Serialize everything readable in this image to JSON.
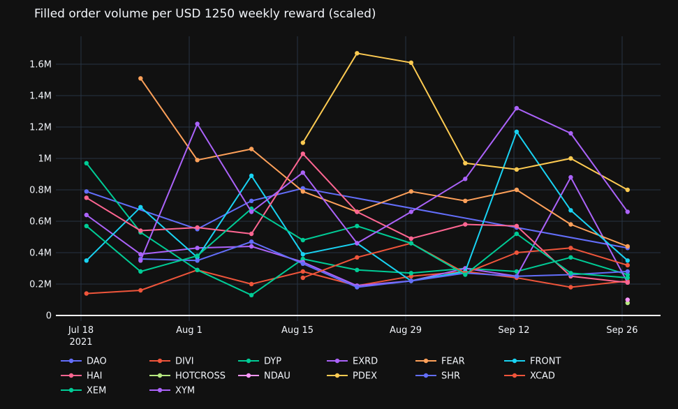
{
  "chart_data": {
    "type": "line",
    "title": "Filled order volume per USD 1250 weekly reward (scaled)",
    "xlabel": "",
    "ylabel": "",
    "ylim": [
      0,
      1.75
    ],
    "y_ticks": [
      {
        "value": 0,
        "label": "0"
      },
      {
        "value": 0.2,
        "label": "0.2M"
      },
      {
        "value": 0.4,
        "label": "0.4M"
      },
      {
        "value": 0.6,
        "label": "0.6M"
      },
      {
        "value": 0.8,
        "label": "0.8M"
      },
      {
        "value": 1.0,
        "label": "1M"
      },
      {
        "value": 1.2,
        "label": "1.2M"
      },
      {
        "value": 1.4,
        "label": "1.4M"
      },
      {
        "value": 1.6,
        "label": "1.6M"
      }
    ],
    "x_ticks": [
      {
        "week": 0,
        "label": "Jul 18",
        "sublabel": "2021"
      },
      {
        "week": 2,
        "label": "Aug 1",
        "sublabel": ""
      },
      {
        "week": 4,
        "label": "Aug 15",
        "sublabel": ""
      },
      {
        "week": 6,
        "label": "Aug 29",
        "sublabel": ""
      },
      {
        "week": 8,
        "label": "Sep 12",
        "sublabel": ""
      },
      {
        "week": 10,
        "label": "Sep 26",
        "sublabel": ""
      }
    ],
    "x_unit": "weeks since Jul 18, 2021",
    "series": [
      {
        "name": "DAO",
        "color": "#636efa",
        "points": [
          [
            0.1,
            0.79
          ],
          [
            2.15,
            0.55
          ],
          [
            3.15,
            0.73
          ],
          [
            4.1,
            0.81
          ],
          [
            8.05,
            0.56
          ],
          [
            10.1,
            0.43
          ]
        ]
      },
      {
        "name": "DIVI",
        "color": "#ef553b",
        "points": [
          [
            0.1,
            0.14
          ],
          [
            1.1,
            0.16
          ],
          [
            2.15,
            0.29
          ],
          [
            3.15,
            0.2
          ],
          [
            4.1,
            0.28
          ],
          [
            5.1,
            0.19
          ],
          [
            6.1,
            0.25
          ],
          [
            7.1,
            0.28
          ],
          [
            8.05,
            0.24
          ],
          [
            9.05,
            0.18
          ],
          [
            10.1,
            0.22
          ]
        ]
      },
      {
        "name": "DYP",
        "color": "#00cc96",
        "points": [
          [
            0.1,
            0.97
          ],
          [
            1.1,
            0.53
          ],
          [
            2.15,
            0.29
          ],
          [
            3.15,
            0.13
          ],
          [
            4.1,
            0.36
          ],
          [
            5.1,
            0.29
          ],
          [
            6.1,
            0.27
          ],
          [
            7.1,
            0.3
          ],
          [
            8.05,
            0.28
          ],
          [
            9.05,
            0.37
          ],
          [
            10.1,
            0.26
          ]
        ]
      },
      {
        "name": "EXRD",
        "color": "#ab63fa",
        "points": [
          [
            0.1,
            0.64
          ],
          [
            1.1,
            0.39
          ],
          [
            2.15,
            0.43
          ],
          [
            3.15,
            0.44
          ],
          [
            4.1,
            0.34
          ],
          [
            5.1,
            0.19
          ],
          [
            6.1,
            0.22
          ],
          [
            7.1,
            0.3
          ],
          [
            8.05,
            0.25
          ],
          [
            9.05,
            0.88
          ],
          [
            10.1,
            0.21
          ]
        ]
      },
      {
        "name": "FEAR",
        "color": "#ffa15a",
        "points": [
          [
            1.1,
            1.51
          ],
          [
            2.15,
            0.99
          ],
          [
            3.15,
            1.06
          ],
          [
            4.1,
            0.79
          ],
          [
            5.1,
            0.66
          ],
          [
            6.1,
            0.79
          ],
          [
            7.1,
            0.73
          ],
          [
            8.05,
            0.8
          ],
          [
            9.05,
            0.58
          ],
          [
            10.1,
            0.44
          ]
        ]
      },
      {
        "name": "FRONT",
        "color": "#19d3f3",
        "points": [
          [
            0.1,
            0.35
          ],
          [
            1.1,
            0.69
          ],
          [
            2.15,
            0.37
          ],
          [
            3.15,
            0.89
          ],
          [
            4.1,
            0.39
          ],
          [
            5.1,
            0.46
          ],
          [
            6.1,
            0.22
          ],
          [
            7.1,
            0.28
          ],
          [
            8.05,
            1.17
          ],
          [
            9.05,
            0.67
          ],
          [
            10.1,
            0.35
          ]
        ]
      },
      {
        "name": "HAI",
        "color": "#ff6692",
        "points": [
          [
            0.1,
            0.75
          ],
          [
            1.1,
            0.54
          ],
          [
            2.15,
            0.56
          ],
          [
            3.15,
            0.52
          ],
          [
            4.1,
            1.03
          ],
          [
            5.1,
            0.66
          ],
          [
            6.1,
            0.49
          ],
          [
            7.1,
            0.58
          ],
          [
            8.05,
            0.57
          ],
          [
            9.05,
            0.25
          ],
          [
            10.1,
            0.21
          ]
        ]
      },
      {
        "name": "HOTCROSS",
        "color": "#b6e880",
        "points": [
          [
            10.1,
            0.08
          ]
        ]
      },
      {
        "name": "NDAU",
        "color": "#ff97ff",
        "points": [
          [
            10.1,
            0.1
          ]
        ]
      },
      {
        "name": "PDEX",
        "color": "#fecb52",
        "points": [
          [
            4.1,
            1.1
          ],
          [
            5.1,
            1.67
          ],
          [
            6.1,
            1.61
          ],
          [
            7.1,
            0.97
          ],
          [
            8.05,
            0.93
          ],
          [
            9.05,
            1.0
          ],
          [
            10.1,
            0.8
          ]
        ]
      },
      {
        "name": "SHR",
        "color": "#636efa",
        "points": [
          [
            1.1,
            0.36
          ],
          [
            2.15,
            0.35
          ],
          [
            3.15,
            0.47
          ],
          [
            4.1,
            0.33
          ],
          [
            5.1,
            0.18
          ],
          [
            6.1,
            0.22
          ],
          [
            7.1,
            0.27
          ],
          [
            8.05,
            0.25
          ],
          [
            9.05,
            0.26
          ],
          [
            10.1,
            0.28
          ]
        ]
      },
      {
        "name": "XCAD",
        "color": "#ef553b",
        "points": [
          [
            4.1,
            0.24
          ],
          [
            5.1,
            0.37
          ],
          [
            6.1,
            0.46
          ],
          [
            7.1,
            0.27
          ],
          [
            8.05,
            0.4
          ],
          [
            9.05,
            0.43
          ],
          [
            10.1,
            0.32
          ]
        ]
      },
      {
        "name": "XEM",
        "color": "#00cc96",
        "points": [
          [
            0.1,
            0.57
          ],
          [
            1.1,
            0.28
          ],
          [
            2.15,
            0.38
          ],
          [
            3.15,
            0.68
          ],
          [
            4.1,
            0.48
          ],
          [
            5.1,
            0.57
          ],
          [
            6.1,
            0.46
          ],
          [
            7.1,
            0.26
          ],
          [
            8.05,
            0.52
          ],
          [
            9.05,
            0.27
          ],
          [
            10.1,
            0.24
          ]
        ]
      },
      {
        "name": "XYM",
        "color": "#ab63fa",
        "points": [
          [
            1.1,
            0.35
          ],
          [
            2.15,
            1.22
          ],
          [
            3.15,
            0.66
          ],
          [
            4.1,
            0.91
          ],
          [
            5.1,
            0.46
          ],
          [
            6.1,
            0.66
          ],
          [
            7.1,
            0.87
          ],
          [
            8.05,
            1.32
          ],
          [
            9.05,
            1.16
          ],
          [
            10.1,
            0.66
          ]
        ]
      }
    ]
  }
}
